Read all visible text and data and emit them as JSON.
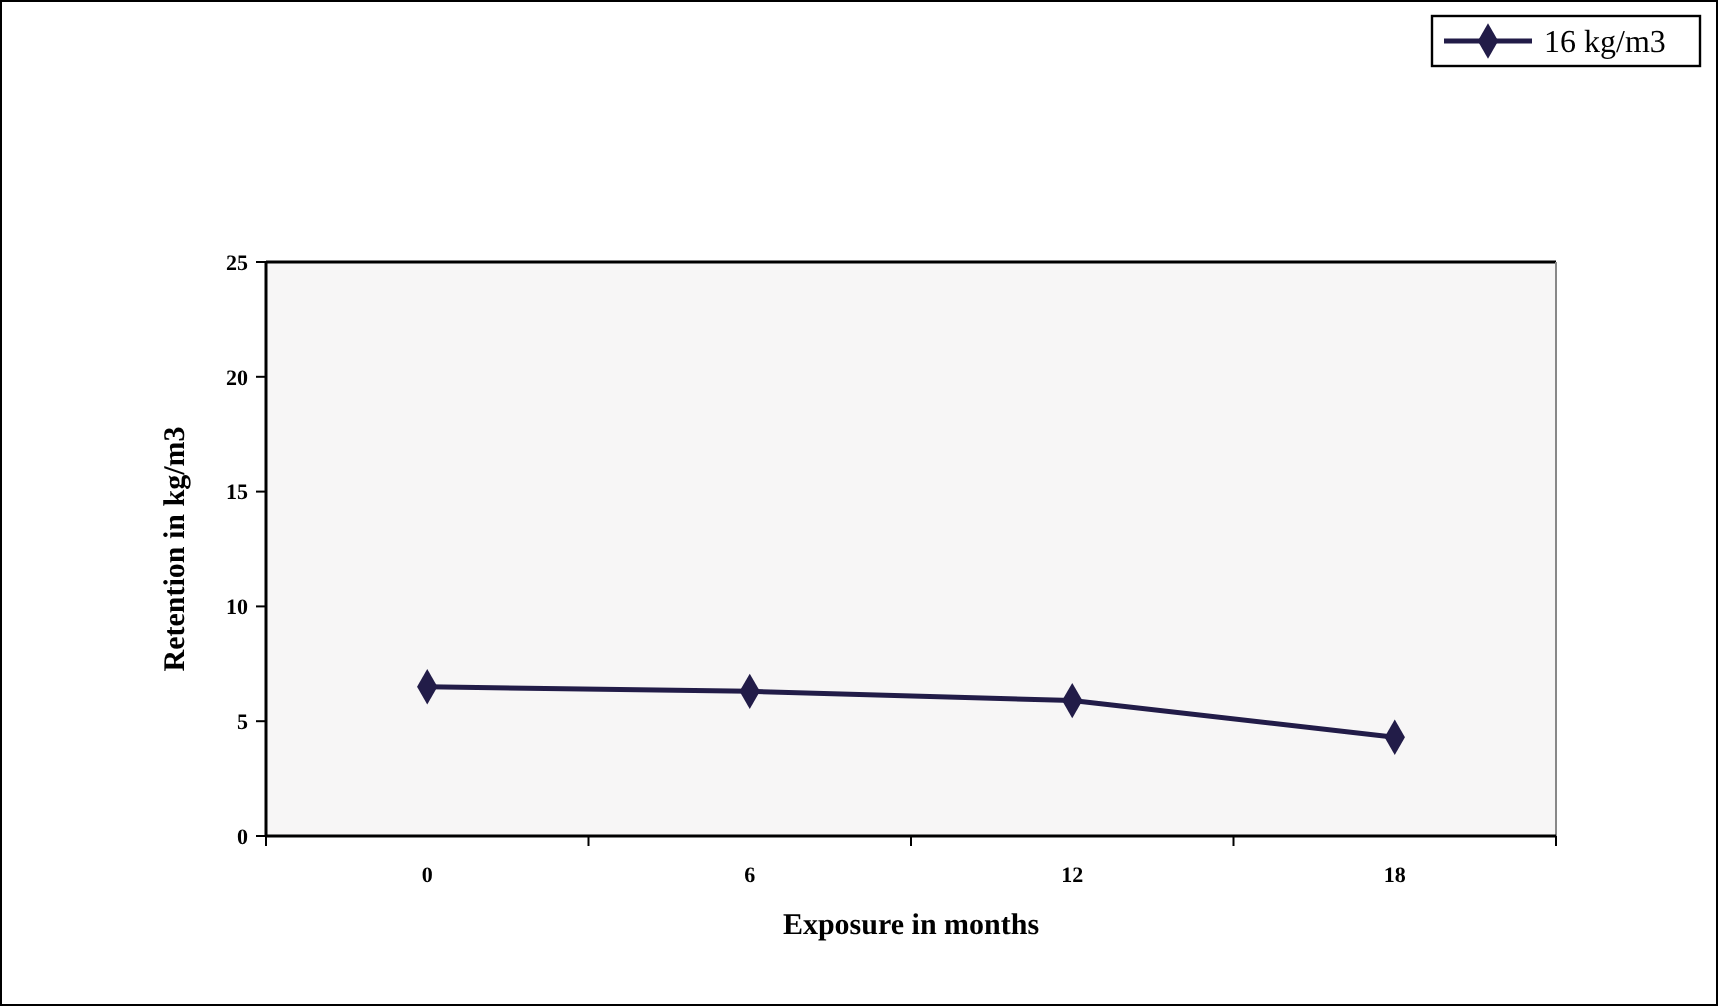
{
  "chart_data": {
    "type": "line",
    "xlabel": "Exposure in months",
    "ylabel": "Retention in kg/m3",
    "categories": [
      "0",
      "6",
      "12",
      "18"
    ],
    "series": [
      {
        "name": "16 kg/m3",
        "color": "#221c48",
        "values": [
          6.5,
          6.3,
          5.9,
          4.3
        ]
      }
    ],
    "ylim": [
      0,
      25
    ],
    "yticks": [
      0,
      5,
      10,
      15,
      20,
      25
    ],
    "marker": "diamond",
    "legend": "top right",
    "grid": false
  }
}
